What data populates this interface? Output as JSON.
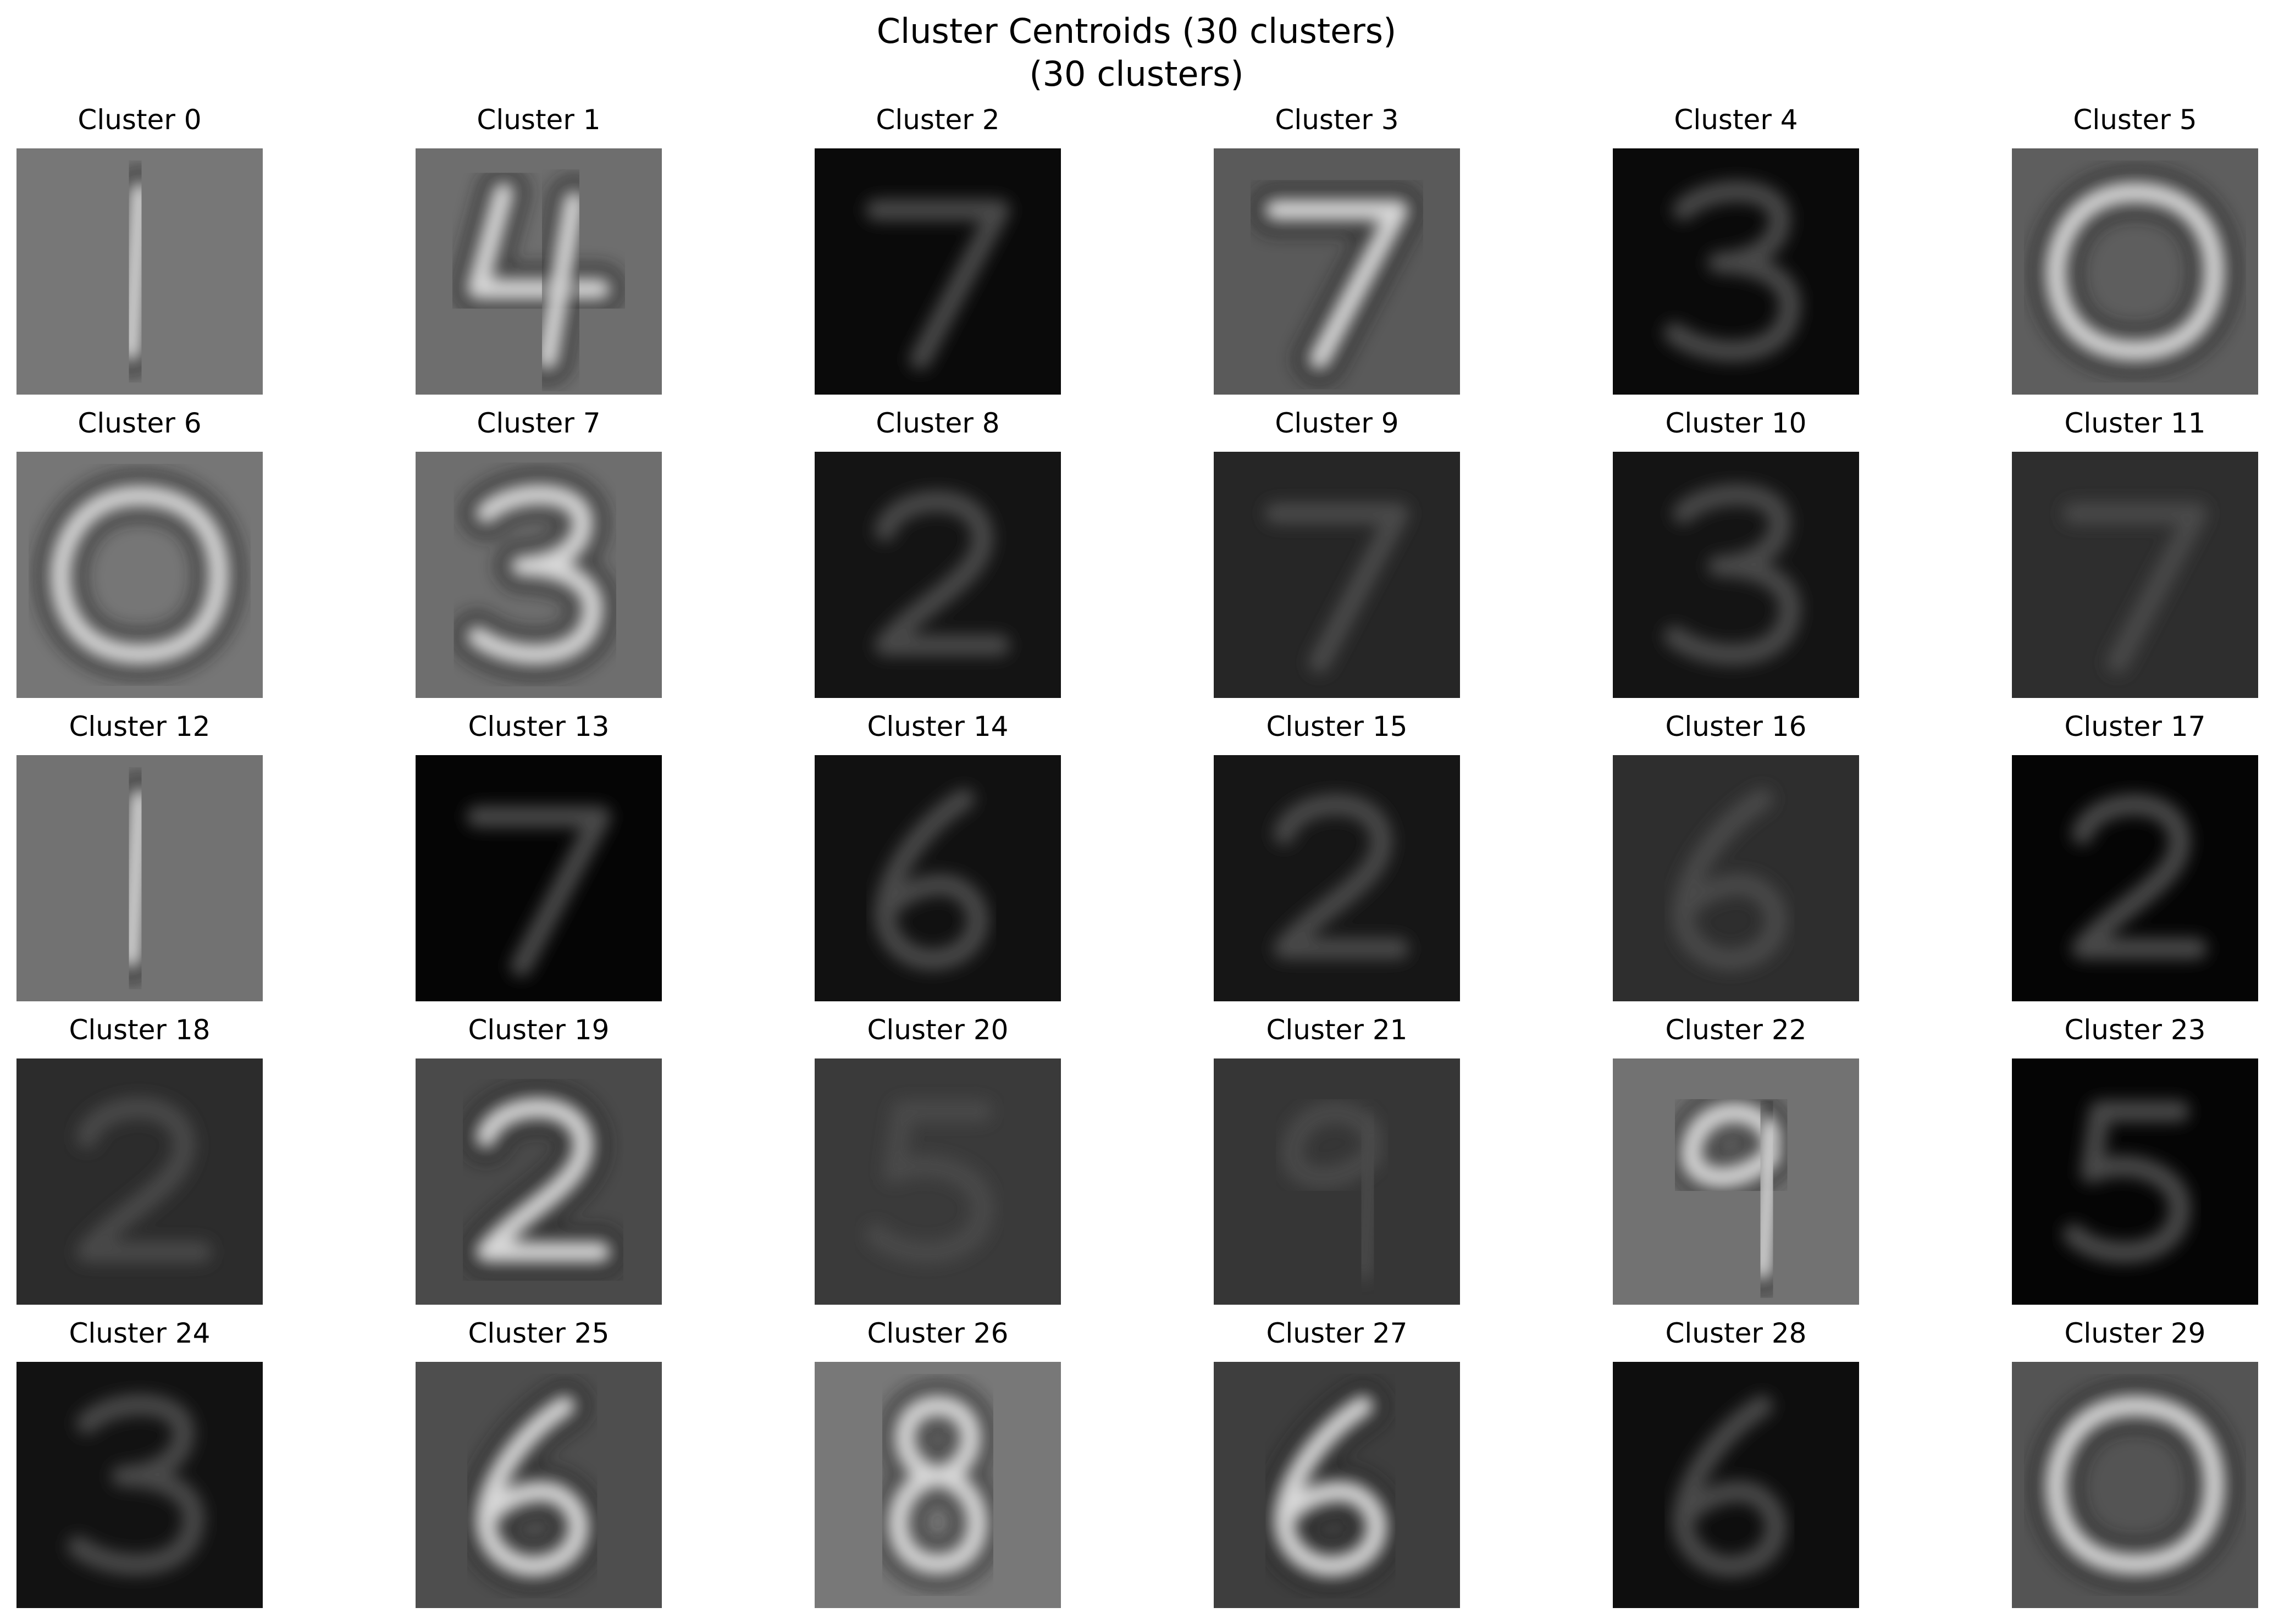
{
  "figure": {
    "title": "Cluster Centroids (30 clusters)",
    "subtitle": "(30 clusters)"
  },
  "grid": {
    "rows": 5,
    "cols": 6
  },
  "panels": [
    {
      "label": "Cluster 0",
      "digit": "1",
      "bg": "#777777"
    },
    {
      "label": "Cluster 1",
      "digit": "4",
      "bg": "#6e6e6e"
    },
    {
      "label": "Cluster 2",
      "digit": "7",
      "bg": "#0a0a0a"
    },
    {
      "label": "Cluster 3",
      "digit": "7",
      "bg": "#5a5a5a"
    },
    {
      "label": "Cluster 4",
      "digit": "3",
      "bg": "#0a0a0a"
    },
    {
      "label": "Cluster 5",
      "digit": "0",
      "bg": "#5e5e5e"
    },
    {
      "label": "Cluster 6",
      "digit": "0",
      "bg": "#767676"
    },
    {
      "label": "Cluster 7",
      "digit": "3",
      "bg": "#6e6e6e"
    },
    {
      "label": "Cluster 8",
      "digit": "2",
      "bg": "#141414"
    },
    {
      "label": "Cluster 9",
      "digit": "7",
      "bg": "#262626"
    },
    {
      "label": "Cluster 10",
      "digit": "3",
      "bg": "#141414"
    },
    {
      "label": "Cluster 11",
      "digit": "7",
      "bg": "#2e2e2e"
    },
    {
      "label": "Cluster 12",
      "digit": "1",
      "bg": "#727272"
    },
    {
      "label": "Cluster 13",
      "digit": "7",
      "bg": "#050505"
    },
    {
      "label": "Cluster 14",
      "digit": "6",
      "bg": "#111111"
    },
    {
      "label": "Cluster 15",
      "digit": "2",
      "bg": "#161616"
    },
    {
      "label": "Cluster 16",
      "digit": "6",
      "bg": "#2e2e2e"
    },
    {
      "label": "Cluster 17",
      "digit": "2",
      "bg": "#050505"
    },
    {
      "label": "Cluster 18",
      "digit": "2",
      "bg": "#2c2c2c"
    },
    {
      "label": "Cluster 19",
      "digit": "2",
      "bg": "#4a4a4a"
    },
    {
      "label": "Cluster 20",
      "digit": "5",
      "bg": "#3a3a3a"
    },
    {
      "label": "Cluster 21",
      "digit": "9",
      "bg": "#363636"
    },
    {
      "label": "Cluster 22",
      "digit": "9",
      "bg": "#727272"
    },
    {
      "label": "Cluster 23",
      "digit": "5",
      "bg": "#050505"
    },
    {
      "label": "Cluster 24",
      "digit": "3",
      "bg": "#121212"
    },
    {
      "label": "Cluster 25",
      "digit": "6",
      "bg": "#4e4e4e"
    },
    {
      "label": "Cluster 26",
      "digit": "8",
      "bg": "#787878"
    },
    {
      "label": "Cluster 27",
      "digit": "6",
      "bg": "#3e3e3e"
    },
    {
      "label": "Cluster 28",
      "digit": "6",
      "bg": "#0e0e0e"
    },
    {
      "label": "Cluster 29",
      "digit": "0",
      "bg": "#545454"
    }
  ]
}
